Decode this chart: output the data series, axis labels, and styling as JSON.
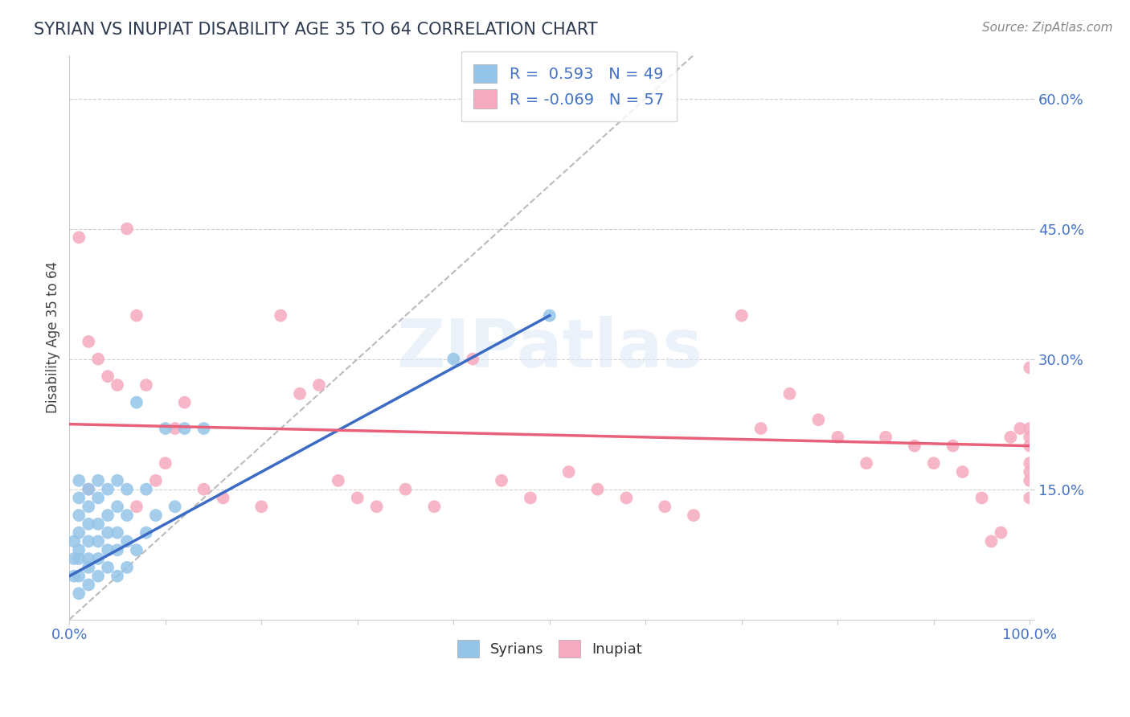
{
  "title": "SYRIAN VS INUPIAT DISABILITY AGE 35 TO 64 CORRELATION CHART",
  "source": "Source: ZipAtlas.com",
  "ylabel": "Disability Age 35 to 64",
  "xlim": [
    0,
    100
  ],
  "ylim": [
    0,
    65
  ],
  "yticks": [
    0,
    15,
    30,
    45,
    60
  ],
  "xticks": [
    0,
    10,
    20,
    30,
    40,
    50,
    60,
    70,
    80,
    90,
    100
  ],
  "blue_R": 0.593,
  "blue_N": 49,
  "pink_R": -0.069,
  "pink_N": 57,
  "blue_color": "#94C4E8",
  "pink_color": "#F5AABF",
  "trend_blue": "#3B6BC4",
  "trend_pink": "#E8607A",
  "bg_color": "#FFFFFF",
  "grid_color": "#D0D0D0",
  "title_color": "#2E3A50",
  "label_color": "#4472C4",
  "watermark": "ZIPatlas",
  "blue_points_x": [
    0.5,
    0.5,
    0.5,
    1,
    1,
    1,
    1,
    1,
    1,
    1,
    1,
    2,
    2,
    2,
    2,
    2,
    2,
    2,
    3,
    3,
    3,
    3,
    3,
    3,
    4,
    4,
    4,
    4,
    4,
    5,
    5,
    5,
    5,
    5,
    6,
    6,
    6,
    6,
    7,
    7,
    8,
    8,
    9,
    10,
    11,
    12,
    14,
    40,
    50
  ],
  "blue_points_y": [
    5,
    7,
    9,
    3,
    5,
    7,
    8,
    10,
    12,
    14,
    16,
    4,
    6,
    7,
    9,
    11,
    13,
    15,
    5,
    7,
    9,
    11,
    14,
    16,
    6,
    8,
    10,
    12,
    15,
    5,
    8,
    10,
    13,
    16,
    6,
    9,
    12,
    15,
    8,
    25,
    10,
    15,
    12,
    22,
    13,
    22,
    22,
    30,
    35
  ],
  "pink_points_x": [
    1,
    2,
    2,
    3,
    4,
    5,
    6,
    7,
    7,
    8,
    9,
    10,
    11,
    12,
    14,
    16,
    20,
    22,
    24,
    26,
    28,
    30,
    32,
    35,
    38,
    42,
    45,
    48,
    52,
    55,
    58,
    62,
    65,
    70,
    72,
    75,
    78,
    80,
    83,
    85,
    88,
    90,
    92,
    93,
    95,
    96,
    97,
    98,
    99,
    100,
    100,
    100,
    100,
    100,
    100,
    100,
    100
  ],
  "pink_points_y": [
    44,
    32,
    15,
    30,
    28,
    27,
    45,
    35,
    13,
    27,
    16,
    18,
    22,
    25,
    15,
    14,
    13,
    35,
    26,
    27,
    16,
    14,
    13,
    15,
    13,
    30,
    16,
    14,
    17,
    15,
    14,
    13,
    12,
    35,
    22,
    26,
    23,
    21,
    18,
    21,
    20,
    18,
    20,
    17,
    14,
    9,
    10,
    21,
    22,
    20,
    18,
    16,
    21,
    14,
    17,
    22,
    29
  ],
  "blue_trend_x0": 0,
  "blue_trend_y0": 5.0,
  "blue_trend_x1": 50,
  "blue_trend_y1": 35.0,
  "pink_trend_x0": 0,
  "pink_trend_y0": 22.5,
  "pink_trend_x1": 100,
  "pink_trend_y1": 20.0,
  "diag_x0": 0,
  "diag_y0": 0,
  "diag_x1": 65,
  "diag_y1": 65
}
